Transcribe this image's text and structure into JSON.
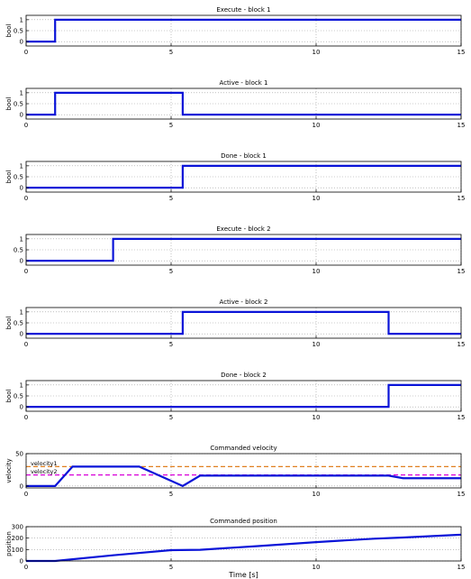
{
  "chart_data": [
    {
      "type": "line",
      "title": "Execute - block 1",
      "ylabel": "bool",
      "xlim": [
        0,
        15
      ],
      "ylim": [
        -0.2,
        1.2
      ],
      "yticks": [
        "1",
        "0.5",
        "0"
      ],
      "ytick_values": [
        1,
        0.5,
        0
      ],
      "xticks": [
        "0",
        "5",
        "10",
        "15"
      ],
      "xtick_values": [
        0,
        5,
        10,
        15
      ],
      "grid": true,
      "series": [
        {
          "color": "#0a14d8",
          "x": [
            0,
            1,
            1,
            15
          ],
          "y": [
            0,
            0,
            1,
            1
          ]
        }
      ]
    },
    {
      "type": "line",
      "title": "Active - block 1",
      "ylabel": "bool",
      "xlim": [
        0,
        15
      ],
      "ylim": [
        -0.2,
        1.2
      ],
      "yticks": [
        "1",
        "0.5",
        "0"
      ],
      "ytick_values": [
        1,
        0.5,
        0
      ],
      "xticks": [
        "0",
        "5",
        "10",
        "15"
      ],
      "xtick_values": [
        0,
        5,
        10,
        15
      ],
      "grid": true,
      "series": [
        {
          "color": "#0a14d8",
          "x": [
            0,
            1,
            1,
            5.4,
            5.4,
            15
          ],
          "y": [
            0,
            0,
            1,
            1,
            0,
            0
          ]
        }
      ]
    },
    {
      "type": "line",
      "title": "Done - block 1",
      "ylabel": "bool",
      "xlim": [
        0,
        15
      ],
      "ylim": [
        -0.2,
        1.2
      ],
      "yticks": [
        "1",
        "0.5",
        "0"
      ],
      "ytick_values": [
        1,
        0.5,
        0
      ],
      "xticks": [
        "0",
        "5",
        "10",
        "15"
      ],
      "xtick_values": [
        0,
        5,
        10,
        15
      ],
      "grid": true,
      "series": [
        {
          "color": "#0a14d8",
          "x": [
            0,
            5.4,
            5.4,
            15
          ],
          "y": [
            0,
            0,
            1,
            1
          ]
        }
      ]
    },
    {
      "type": "line",
      "title": "Execute - block 2",
      "ylabel": "",
      "xlim": [
        0,
        15
      ],
      "ylim": [
        -0.2,
        1.2
      ],
      "yticks": [
        "1",
        "0.5",
        "0"
      ],
      "ytick_values": [
        1,
        0.5,
        0
      ],
      "xticks": [
        "0",
        "5",
        "10",
        "15"
      ],
      "xtick_values": [
        0,
        5,
        10,
        15
      ],
      "grid": true,
      "series": [
        {
          "color": "#0a14d8",
          "x": [
            0,
            3,
            3,
            15
          ],
          "y": [
            0,
            0,
            1,
            1
          ]
        }
      ]
    },
    {
      "type": "line",
      "title": "Active - block 2",
      "ylabel": "bool",
      "xlim": [
        0,
        15
      ],
      "ylim": [
        -0.2,
        1.2
      ],
      "yticks": [
        "1",
        "0.5",
        "0"
      ],
      "ytick_values": [
        1,
        0.5,
        0
      ],
      "xticks": [
        "0",
        "5",
        "10",
        "15"
      ],
      "xtick_values": [
        0,
        5,
        10,
        15
      ],
      "grid": true,
      "series": [
        {
          "color": "#0a14d8",
          "x": [
            0,
            5.4,
            5.4,
            12.5,
            12.5,
            15
          ],
          "y": [
            0,
            0,
            1,
            1,
            0,
            0
          ]
        }
      ]
    },
    {
      "type": "line",
      "title": "Done - block 2",
      "ylabel": "bool",
      "xlim": [
        0,
        15
      ],
      "ylim": [
        -0.2,
        1.2
      ],
      "yticks": [
        "1",
        "0.5",
        "0"
      ],
      "ytick_values": [
        1,
        0.5,
        0
      ],
      "xticks": [
        "0",
        "5",
        "10",
        "15"
      ],
      "xtick_values": [
        0,
        5,
        10,
        15
      ],
      "grid": true,
      "series": [
        {
          "color": "#0a14d8",
          "x": [
            0,
            12.5,
            12.5,
            15
          ],
          "y": [
            0,
            0,
            1,
            1
          ]
        }
      ]
    },
    {
      "type": "line",
      "title": "Commanded velocity",
      "ylabel": "velocity",
      "xlim": [
        0,
        15
      ],
      "ylim": [
        -3,
        50
      ],
      "yticks": [
        "50",
        "0"
      ],
      "ytick_values": [
        50,
        0
      ],
      "xticks": [
        "0",
        "5",
        "10",
        "15"
      ],
      "xtick_values": [
        0,
        5,
        10,
        15
      ],
      "grid": true,
      "series": [
        {
          "color": "#0a14d8",
          "x": [
            0,
            1,
            1.6,
            3.9,
            5.4,
            6.0,
            12.5,
            13.0,
            15
          ],
          "y": [
            0,
            0,
            30,
            30,
            0,
            16,
            16,
            12,
            12
          ]
        }
      ],
      "reference_lines": [
        {
          "label": "velocity1",
          "y": 30,
          "color": "#e08020"
        },
        {
          "label": "velocity2",
          "y": 17,
          "color": "#d800d8"
        }
      ]
    },
    {
      "type": "line",
      "title": "Commanded position",
      "ylabel": "position",
      "xlabel": "Time [s]",
      "xlim": [
        0,
        15
      ],
      "ylim": [
        0,
        300
      ],
      "yticks": [
        "300",
        "200",
        "100",
        "0"
      ],
      "ytick_values": [
        300,
        200,
        100,
        0
      ],
      "xticks": [
        "0",
        "5",
        "10",
        "15"
      ],
      "xtick_values": [
        0,
        5,
        10,
        15
      ],
      "grid": true,
      "series": [
        {
          "color": "#0a14d8",
          "x": [
            0,
            1,
            3,
            5,
            6,
            8,
            10,
            12,
            13,
            15
          ],
          "y": [
            0,
            0,
            50,
            95,
            98,
            130,
            165,
            195,
            205,
            230
          ]
        }
      ]
    }
  ]
}
